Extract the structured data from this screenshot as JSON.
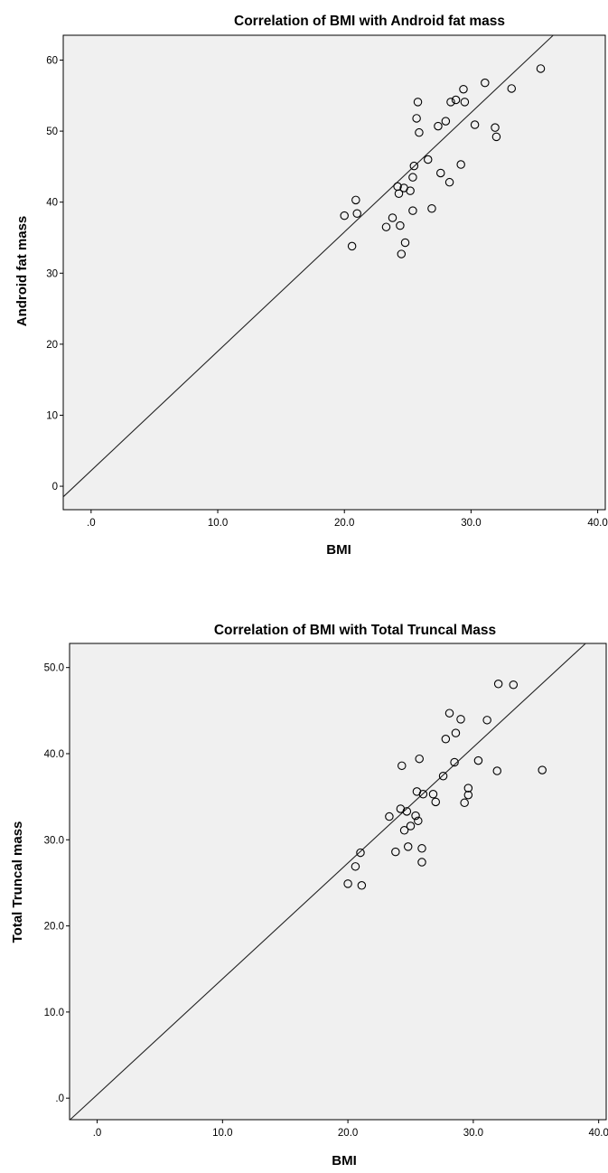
{
  "chart_data": [
    {
      "type": "scatter",
      "title": "Correlation of BMI with Android fat mass",
      "xlabel": "BMI",
      "ylabel": "Android fat mass",
      "xlim": [
        -2.2,
        40.6
      ],
      "ylim": [
        -3.3,
        63.5
      ],
      "x_ticks": [
        0,
        10,
        20,
        30,
        40
      ],
      "x_tick_labels": [
        ".0",
        "10.0",
        "20.0",
        "30.0",
        "40.0"
      ],
      "y_ticks": [
        0,
        10,
        20,
        30,
        40,
        50,
        60
      ],
      "y_tick_labels": [
        "0",
        "10",
        "20",
        "30",
        "40",
        "50",
        "60"
      ],
      "grid": false,
      "fit_line": {
        "slope": 1.68,
        "intercept": 2.2
      },
      "points": [
        [
          20.0,
          38.1
        ],
        [
          20.6,
          33.8
        ],
        [
          20.9,
          40.3
        ],
        [
          21.0,
          38.4
        ],
        [
          23.3,
          36.5
        ],
        [
          23.8,
          37.8
        ],
        [
          24.2,
          42.2
        ],
        [
          24.3,
          41.2
        ],
        [
          24.4,
          36.7
        ],
        [
          24.5,
          32.7
        ],
        [
          24.7,
          42.0
        ],
        [
          24.8,
          34.3
        ],
        [
          25.2,
          41.6
        ],
        [
          25.4,
          43.5
        ],
        [
          25.4,
          38.8
        ],
        [
          25.5,
          45.1
        ],
        [
          25.7,
          51.8
        ],
        [
          25.8,
          54.1
        ],
        [
          25.9,
          49.8
        ],
        [
          26.6,
          46.0
        ],
        [
          26.9,
          39.1
        ],
        [
          27.4,
          50.7
        ],
        [
          27.6,
          44.1
        ],
        [
          28.0,
          51.4
        ],
        [
          28.3,
          42.8
        ],
        [
          28.4,
          54.1
        ],
        [
          28.8,
          54.4
        ],
        [
          29.2,
          45.3
        ],
        [
          29.4,
          55.9
        ],
        [
          29.5,
          54.1
        ],
        [
          30.3,
          50.9
        ],
        [
          31.1,
          56.8
        ],
        [
          31.9,
          50.5
        ],
        [
          32.0,
          49.2
        ],
        [
          33.2,
          56.0
        ],
        [
          35.5,
          58.8
        ]
      ]
    },
    {
      "type": "scatter",
      "title": "Correlation of BMI with Total Truncal Mass",
      "xlabel": "BMI",
      "ylabel": "Total Truncal mass",
      "xlim": [
        -2.2,
        40.6
      ],
      "ylim": [
        -2.5,
        52.8
      ],
      "x_ticks": [
        0,
        10,
        20,
        30,
        40
      ],
      "x_tick_labels": [
        ".0",
        "10.0",
        "20.0",
        "30.0",
        "40.0"
      ],
      "y_ticks": [
        0,
        10,
        20,
        30,
        40,
        50
      ],
      "y_tick_labels": [
        ".0",
        "10.0",
        "20.0",
        "30.0",
        "40.0",
        "50.0"
      ],
      "grid": false,
      "fit_line": {
        "slope": 1.345,
        "intercept": 0.4
      },
      "points": [
        [
          20.0,
          24.9
        ],
        [
          20.6,
          26.9
        ],
        [
          21.0,
          28.5
        ],
        [
          21.1,
          24.7
        ],
        [
          23.3,
          32.7
        ],
        [
          23.8,
          28.6
        ],
        [
          24.2,
          33.6
        ],
        [
          24.3,
          38.6
        ],
        [
          24.5,
          31.1
        ],
        [
          24.7,
          33.3
        ],
        [
          24.8,
          29.2
        ],
        [
          25.0,
          31.6
        ],
        [
          25.4,
          32.8
        ],
        [
          25.5,
          35.6
        ],
        [
          25.6,
          32.2
        ],
        [
          25.7,
          39.4
        ],
        [
          25.9,
          29.0
        ],
        [
          25.9,
          27.4
        ],
        [
          26.0,
          35.3
        ],
        [
          26.8,
          35.3
        ],
        [
          27.0,
          34.4
        ],
        [
          27.6,
          37.4
        ],
        [
          27.8,
          41.7
        ],
        [
          28.1,
          44.7
        ],
        [
          28.5,
          39.0
        ],
        [
          28.6,
          42.4
        ],
        [
          29.0,
          44.0
        ],
        [
          29.3,
          34.3
        ],
        [
          29.6,
          35.2
        ],
        [
          29.6,
          36.0
        ],
        [
          30.4,
          39.2
        ],
        [
          31.1,
          43.9
        ],
        [
          31.9,
          38.0
        ],
        [
          32.0,
          48.1
        ],
        [
          33.2,
          48.0
        ],
        [
          35.5,
          38.1
        ]
      ]
    }
  ]
}
